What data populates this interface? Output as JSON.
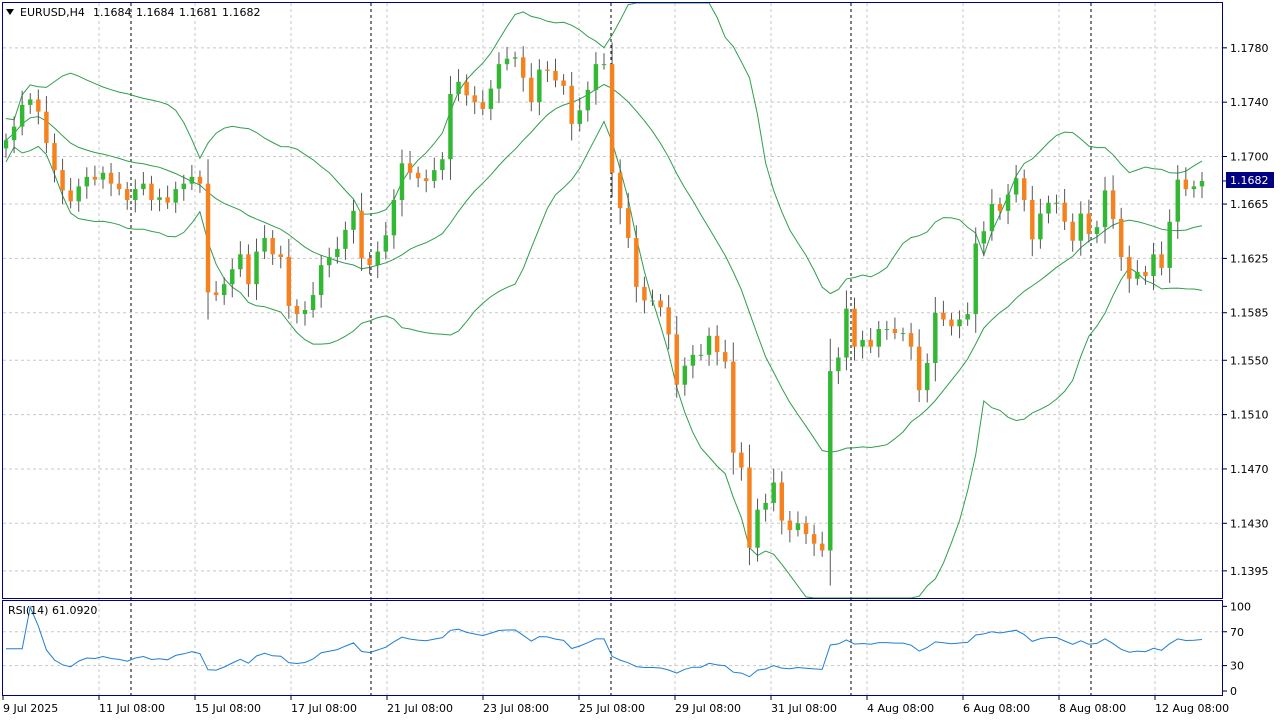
{
  "header": {
    "menu_arrow": "triangle-down-icon",
    "symbol_label": "EURUSD,H4",
    "ohlc": [
      "1.1684",
      "1.1684",
      "1.1681",
      "1.1682"
    ]
  },
  "current_price": "1.1682",
  "colors": {
    "bull": "#33b833",
    "bear": "#f5821f",
    "wick": "#555555",
    "band": "#2e9e4e",
    "rsi": "#1e7fd4",
    "grid": "#c8c8c8",
    "frame": "#000080",
    "price_label_bg": "#000080"
  },
  "price_axis": {
    "labels": [
      "1.1780",
      "1.1740",
      "1.1700",
      "1.1665",
      "1.1625",
      "1.1585",
      "1.1550",
      "1.1510",
      "1.1470",
      "1.1430",
      "1.1395"
    ]
  },
  "time_axis": {
    "labels": [
      "9 Jul 2025",
      "11 Jul 08:00",
      "15 Jul 08:00",
      "17 Jul 08:00",
      "21 Jul 08:00",
      "23 Jul 08:00",
      "25 Jul 08:00",
      "29 Jul 08:00",
      "31 Jul 08:00",
      "4 Aug 08:00",
      "6 Aug 08:00",
      "8 Aug 08:00",
      "12 Aug 08:00"
    ]
  },
  "rsi_panel": {
    "label": "RSI(14) 61.0920",
    "levels": [
      "100",
      "70",
      "30",
      "0"
    ]
  },
  "chart_data": {
    "type": "candlestick",
    "symbol": "EURUSD",
    "timeframe": "H4",
    "price_range": [
      1.1375,
      1.1813
    ],
    "x": [
      "9 Jul 2025",
      "11 Jul 08:00",
      "15 Jul 08:00",
      "17 Jul 08:00",
      "21 Jul 08:00",
      "23 Jul 08:00",
      "25 Jul 08:00",
      "29 Jul 08:00",
      "31 Jul 08:00",
      "4 Aug 08:00",
      "6 Aug 08:00",
      "8 Aug 08:00",
      "12 Aug 08:00"
    ],
    "closes": [
      1.1712,
      1.1722,
      1.1738,
      1.1742,
      1.1733,
      1.171,
      1.169,
      1.1675,
      1.1667,
      1.1678,
      1.1685,
      1.1683,
      1.1688,
      1.168,
      1.1676,
      1.1668,
      1.1676,
      1.168,
      1.1668,
      1.167,
      1.1666,
      1.1676,
      1.168,
      1.1685,
      1.168,
      1.16,
      1.1598,
      1.1606,
      1.1617,
      1.1628,
      1.1606,
      1.163,
      1.164,
      1.1628,
      1.1626,
      1.159,
      1.1584,
      1.1587,
      1.1598,
      1.162,
      1.1626,
      1.1632,
      1.1646,
      1.166,
      1.1625,
      1.162,
      1.163,
      1.1642,
      1.1668,
      1.1695,
      1.1688,
      1.1684,
      1.1682,
      1.169,
      1.1698,
      1.1746,
      1.1755,
      1.1745,
      1.174,
      1.1735,
      1.175,
      1.1768,
      1.1772,
      1.1773,
      1.1758,
      1.174,
      1.1764,
      1.1763,
      1.1756,
      1.1752,
      1.1724,
      1.1734,
      1.1749,
      1.1768,
      1.1768,
      1.1688,
      1.1662,
      1.164,
      1.1604,
      1.1594,
      1.1594,
      1.1589,
      1.1569,
      1.1532,
      1.1546,
      1.1554,
      1.1554,
      1.1568,
      1.1556,
      1.1549,
      1.1482,
      1.1471,
      1.1412,
      1.144,
      1.1445,
      1.146,
      1.1432,
      1.1425,
      1.143,
      1.1422,
      1.1415,
      1.141,
      1.1542,
      1.1552,
      1.1588,
      1.156,
      1.1565,
      1.156,
      1.1573,
      1.1573,
      1.157,
      1.157,
      1.156,
      1.1528,
      1.1548,
      1.1585,
      1.158,
      1.1575,
      1.158,
      1.1584,
      1.1636,
      1.1645,
      1.1665,
      1.166,
      1.1672,
      1.1684,
      1.1668,
      1.1639,
      1.1658,
      1.1666,
      1.1666,
      1.1652,
      1.1638,
      1.1658,
      1.1643,
      1.1648,
      1.1675,
      1.1654,
      1.1626,
      1.161,
      1.1615,
      1.1612,
      1.1628,
      1.1618,
      1.1652,
      1.1683,
      1.1676,
      1.1678,
      1.1682
    ]
  }
}
